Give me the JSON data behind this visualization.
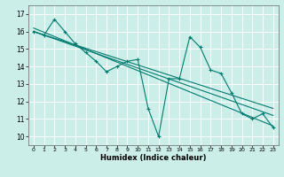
{
  "title": "",
  "xlabel": "Humidex (Indice chaleur)",
  "ylabel": "",
  "bg_color": "#cceee8",
  "grid_color": "#ffffff",
  "line_color": "#007a70",
  "xlim": [
    -0.5,
    23.5
  ],
  "ylim": [
    9.5,
    17.5
  ],
  "xticks": [
    0,
    1,
    2,
    3,
    4,
    5,
    6,
    7,
    8,
    9,
    10,
    11,
    12,
    13,
    14,
    15,
    16,
    17,
    18,
    19,
    20,
    21,
    22,
    23
  ],
  "yticks": [
    10,
    11,
    12,
    13,
    14,
    15,
    16,
    17
  ],
  "series1_x": [
    0,
    1,
    2,
    3,
    4,
    5,
    6,
    7,
    8,
    9,
    10,
    11,
    12,
    13,
    14,
    15,
    16,
    17,
    18,
    19,
    20,
    21,
    22,
    23
  ],
  "series1_y": [
    16.0,
    15.8,
    16.7,
    16.0,
    15.3,
    14.8,
    14.3,
    13.7,
    14.0,
    14.3,
    14.4,
    11.6,
    10.0,
    13.3,
    13.3,
    15.7,
    15.1,
    13.8,
    13.6,
    12.5,
    11.3,
    11.0,
    11.3,
    10.5
  ],
  "regression_lines": [
    {
      "x": [
        0,
        23
      ],
      "y": [
        16.0,
        11.2
      ]
    },
    {
      "x": [
        0,
        23
      ],
      "y": [
        16.0,
        11.6
      ]
    },
    {
      "x": [
        0,
        23
      ],
      "y": [
        16.2,
        10.6
      ]
    }
  ]
}
